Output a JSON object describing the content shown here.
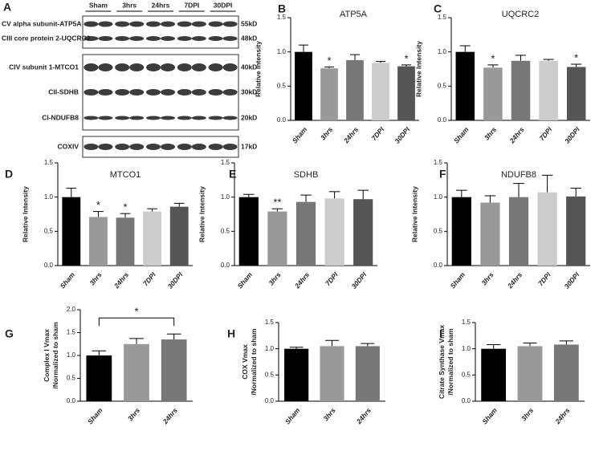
{
  "blot": {
    "panel": "A",
    "lanes": [
      "Sham",
      "3hrs",
      "24hrs",
      "7DPI",
      "30DPI"
    ],
    "rows": [
      {
        "label": "CV alpha subunit-ATP5A",
        "size": "55kD"
      },
      {
        "label": "CIII core protein 2-UQCRC2",
        "size": "48kD"
      },
      {
        "label": "CIV subunit 1-MTCO1",
        "size": "40kD"
      },
      {
        "label": "CII-SDHB",
        "size": "30kD"
      },
      {
        "label": "CI-NDUFB8",
        "size": "20kD"
      },
      {
        "label": "COXIV",
        "size": "17kD"
      }
    ]
  },
  "chart_data": [
    {
      "type": "bar",
      "panel": "B",
      "title": "ATP5A",
      "ylabel": [
        "Relative Intensity"
      ],
      "categories": [
        "Sham",
        "3hrs",
        "24hrs",
        "7DPI",
        "30DPI"
      ],
      "values": [
        1.0,
        0.76,
        0.88,
        0.84,
        0.79
      ],
      "errors": [
        0.1,
        0.02,
        0.08,
        0.02,
        0.02
      ],
      "colors": [
        "#000000",
        "#999999",
        "#777777",
        "#cccccc",
        "#555555"
      ],
      "ylim": [
        0,
        1.5
      ],
      "yticks": [
        {
          "value": 0,
          "label": "0.0"
        },
        0.5,
        {
          "value": 1,
          "label": "1.0"
        },
        1.5
      ],
      "annotations": [
        {
          "text": "*",
          "category": "3hrs"
        },
        {
          "text": "*",
          "category": "30DPI"
        }
      ]
    },
    {
      "type": "bar",
      "panel": "C",
      "title": "UQCRC2",
      "ylabel": [
        "Relative Intensity"
      ],
      "categories": [
        "Sham",
        "3hrs",
        "24hrs",
        "7DPI",
        "30DPI"
      ],
      "values": [
        1.0,
        0.77,
        0.87,
        0.87,
        0.78
      ],
      "errors": [
        0.09,
        0.04,
        0.08,
        0.02,
        0.04
      ],
      "colors": [
        "#000000",
        "#999999",
        "#777777",
        "#cccccc",
        "#555555"
      ],
      "ylim": [
        0,
        1.5
      ],
      "yticks": [
        {
          "value": 0,
          "label": "0.0"
        },
        0.5,
        {
          "value": 1,
          "label": "1.0"
        },
        1.5
      ],
      "annotations": [
        {
          "text": "*",
          "category": "3hrs"
        },
        {
          "text": "*",
          "category": "30DPI"
        }
      ]
    },
    {
      "type": "bar",
      "panel": "D",
      "title": "MTCO1",
      "ylabel": [
        "Relative Intensity"
      ],
      "categories": [
        "Sham",
        "3hrs",
        "24hrs",
        "7DPI",
        "30DPI"
      ],
      "values": [
        1.0,
        0.71,
        0.7,
        0.79,
        0.86
      ],
      "errors": [
        0.13,
        0.08,
        0.06,
        0.04,
        0.05
      ],
      "colors": [
        "#000000",
        "#999999",
        "#777777",
        "#cccccc",
        "#555555"
      ],
      "ylim": [
        0,
        1.5
      ],
      "yticks": [
        {
          "value": 0,
          "label": "0.0"
        },
        0.5,
        {
          "value": 1,
          "label": "1.0"
        },
        1.5
      ],
      "annotations": [
        {
          "text": "*",
          "category": "3hrs"
        },
        {
          "text": "*",
          "category": "24hrs"
        }
      ]
    },
    {
      "type": "bar",
      "panel": "E",
      "title": "SDHB",
      "ylabel": [
        "Relative Intensity"
      ],
      "categories": [
        "Sham",
        "3hrs",
        "24hrs",
        "7DPI",
        "30DPI"
      ],
      "values": [
        1.0,
        0.79,
        0.93,
        0.98,
        0.97
      ],
      "errors": [
        0.04,
        0.04,
        0.1,
        0.1,
        0.13
      ],
      "colors": [
        "#000000",
        "#999999",
        "#777777",
        "#cccccc",
        "#555555"
      ],
      "ylim": [
        0,
        1.5
      ],
      "yticks": [
        {
          "value": 0,
          "label": "0.0"
        },
        0.5,
        {
          "value": 1,
          "label": "1.0"
        },
        1.5
      ],
      "annotations": [
        {
          "text": "**",
          "category": "3hrs"
        }
      ]
    },
    {
      "type": "bar",
      "panel": "F",
      "title": "NDUFB8",
      "ylabel": [
        "Relative Intensity"
      ],
      "categories": [
        "Sham",
        "3hrs",
        "24hrs",
        "7DPI",
        "30DPI"
      ],
      "values": [
        1.0,
        0.92,
        1.0,
        1.07,
        1.01
      ],
      "errors": [
        0.1,
        0.1,
        0.2,
        0.25,
        0.12
      ],
      "colors": [
        "#000000",
        "#999999",
        "#777777",
        "#cccccc",
        "#555555"
      ],
      "ylim": [
        0,
        1.5
      ],
      "yticks": [
        {
          "value": 0,
          "label": "0.0"
        },
        0.5,
        {
          "value": 1,
          "label": "1.0"
        },
        1.5
      ]
    },
    {
      "type": "bar",
      "panel": "G",
      "ylabel": [
        "Complex I Vmax",
        "/Normalized to sham"
      ],
      "categories": [
        "Sham",
        "3hrs",
        "24hrs"
      ],
      "values": [
        1.0,
        1.25,
        1.35
      ],
      "errors": [
        0.1,
        0.12,
        0.12
      ],
      "colors": [
        "#000000",
        "#999999",
        "#777777"
      ],
      "ylim": [
        0,
        2
      ],
      "yticks": [
        {
          "value": 0,
          "label": "0.0"
        },
        0.5,
        {
          "value": 1,
          "label": "1.0"
        },
        1.5,
        {
          "value": 2,
          "label": "2.0"
        }
      ],
      "brackets": [
        {
          "text": "*",
          "from": "Sham",
          "to": "24hrs"
        }
      ]
    },
    {
      "type": "bar",
      "panel": "H",
      "ylabel": [
        "COX Vmax",
        "/Normalized to sham"
      ],
      "categories": [
        "Sham",
        "3hrs",
        "24hrs"
      ],
      "values": [
        1.0,
        1.05,
        1.05
      ],
      "errors": [
        0.03,
        0.11,
        0.05
      ],
      "colors": [
        "#000000",
        "#999999",
        "#777777"
      ],
      "ylim": [
        0,
        1.5
      ],
      "yticks": [
        {
          "value": 0,
          "label": "0.0"
        },
        0.5,
        {
          "value": 1,
          "label": "1.0"
        },
        1.5
      ]
    },
    {
      "type": "bar",
      "panel": "I",
      "ylabel": [
        "Citrate Synthase Vmax",
        "/Normalized to sham"
      ],
      "categories": [
        "Sham",
        "3hrs",
        "24hrs"
      ],
      "values": [
        1.0,
        1.05,
        1.08
      ],
      "errors": [
        0.08,
        0.06,
        0.07
      ],
      "colors": [
        "#000000",
        "#999999",
        "#777777"
      ],
      "ylim": [
        0,
        1.5
      ],
      "yticks": [
        {
          "value": 0,
          "label": "0.0"
        },
        0.5,
        {
          "value": 1,
          "label": "1.0"
        },
        1.5
      ]
    }
  ]
}
